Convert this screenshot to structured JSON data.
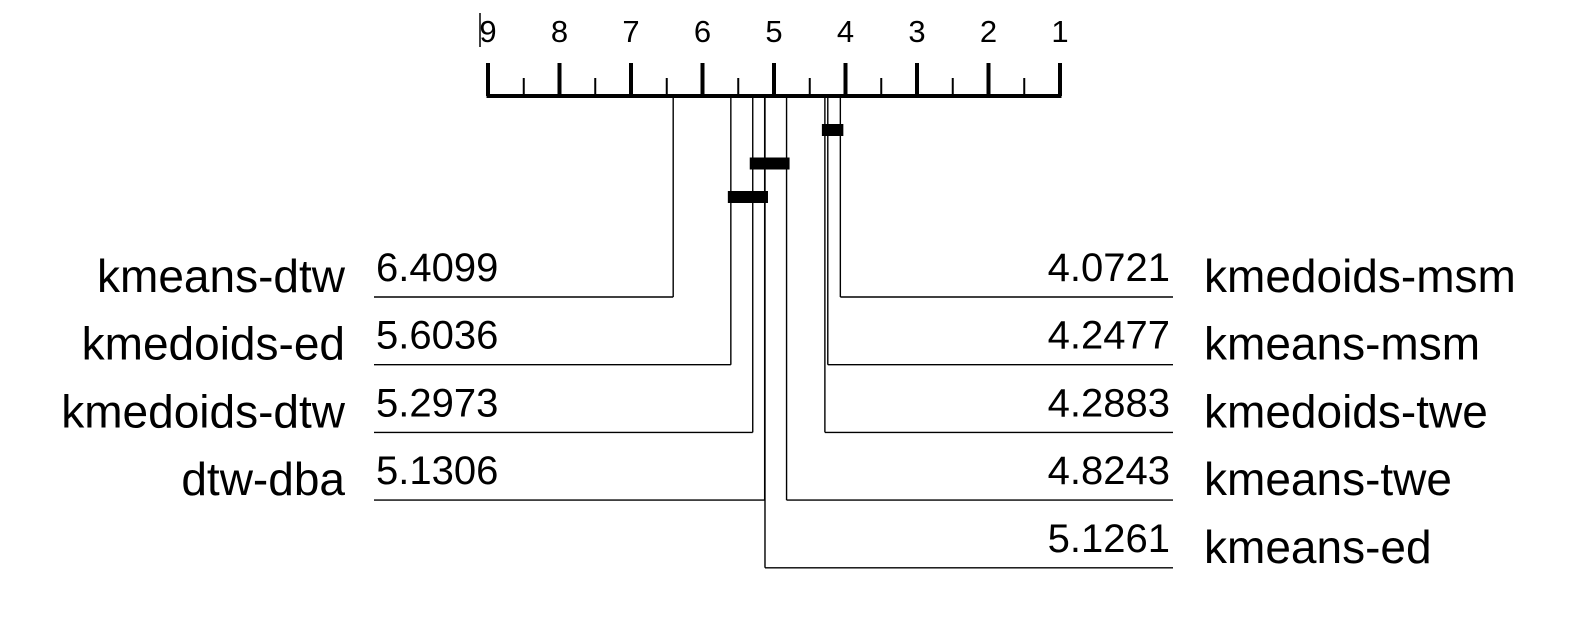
{
  "chart_data": {
    "type": "critical-difference-diagram",
    "axis": {
      "min": 1,
      "max": 9,
      "reversed": true,
      "ticks": [
        9,
        8,
        7,
        6,
        5,
        4,
        3,
        2,
        1
      ],
      "tick_labels": [
        "9",
        "8",
        "7",
        "6",
        "5",
        "4",
        "3",
        "2",
        "1"
      ]
    },
    "left_methods": [
      {
        "name": "kmeans-dtw",
        "rank": 6.4099,
        "rank_label": "6.4099"
      },
      {
        "name": "kmedoids-ed",
        "rank": 5.6036,
        "rank_label": "5.6036"
      },
      {
        "name": "kmedoids-dtw",
        "rank": 5.2973,
        "rank_label": "5.2973"
      },
      {
        "name": "dtw-dba",
        "rank": 5.1306,
        "rank_label": "5.1306"
      }
    ],
    "right_methods": [
      {
        "name": "kmedoids-msm",
        "rank": 4.0721,
        "rank_label": "4.0721"
      },
      {
        "name": "kmeans-msm",
        "rank": 4.2477,
        "rank_label": "4.2477"
      },
      {
        "name": "kmedoids-twe",
        "rank": 4.2883,
        "rank_label": "4.2883"
      },
      {
        "name": "kmeans-twe",
        "rank": 4.8243,
        "rank_label": "4.8243"
      },
      {
        "name": "kmeans-ed",
        "rank": 5.1261,
        "rank_label": "5.1261"
      }
    ],
    "cliques": [
      {
        "from": 4.0721,
        "to": 4.2883
      },
      {
        "from": 4.8243,
        "to": 5.2973
      },
      {
        "from": 5.1261,
        "to": 5.6036
      }
    ]
  }
}
